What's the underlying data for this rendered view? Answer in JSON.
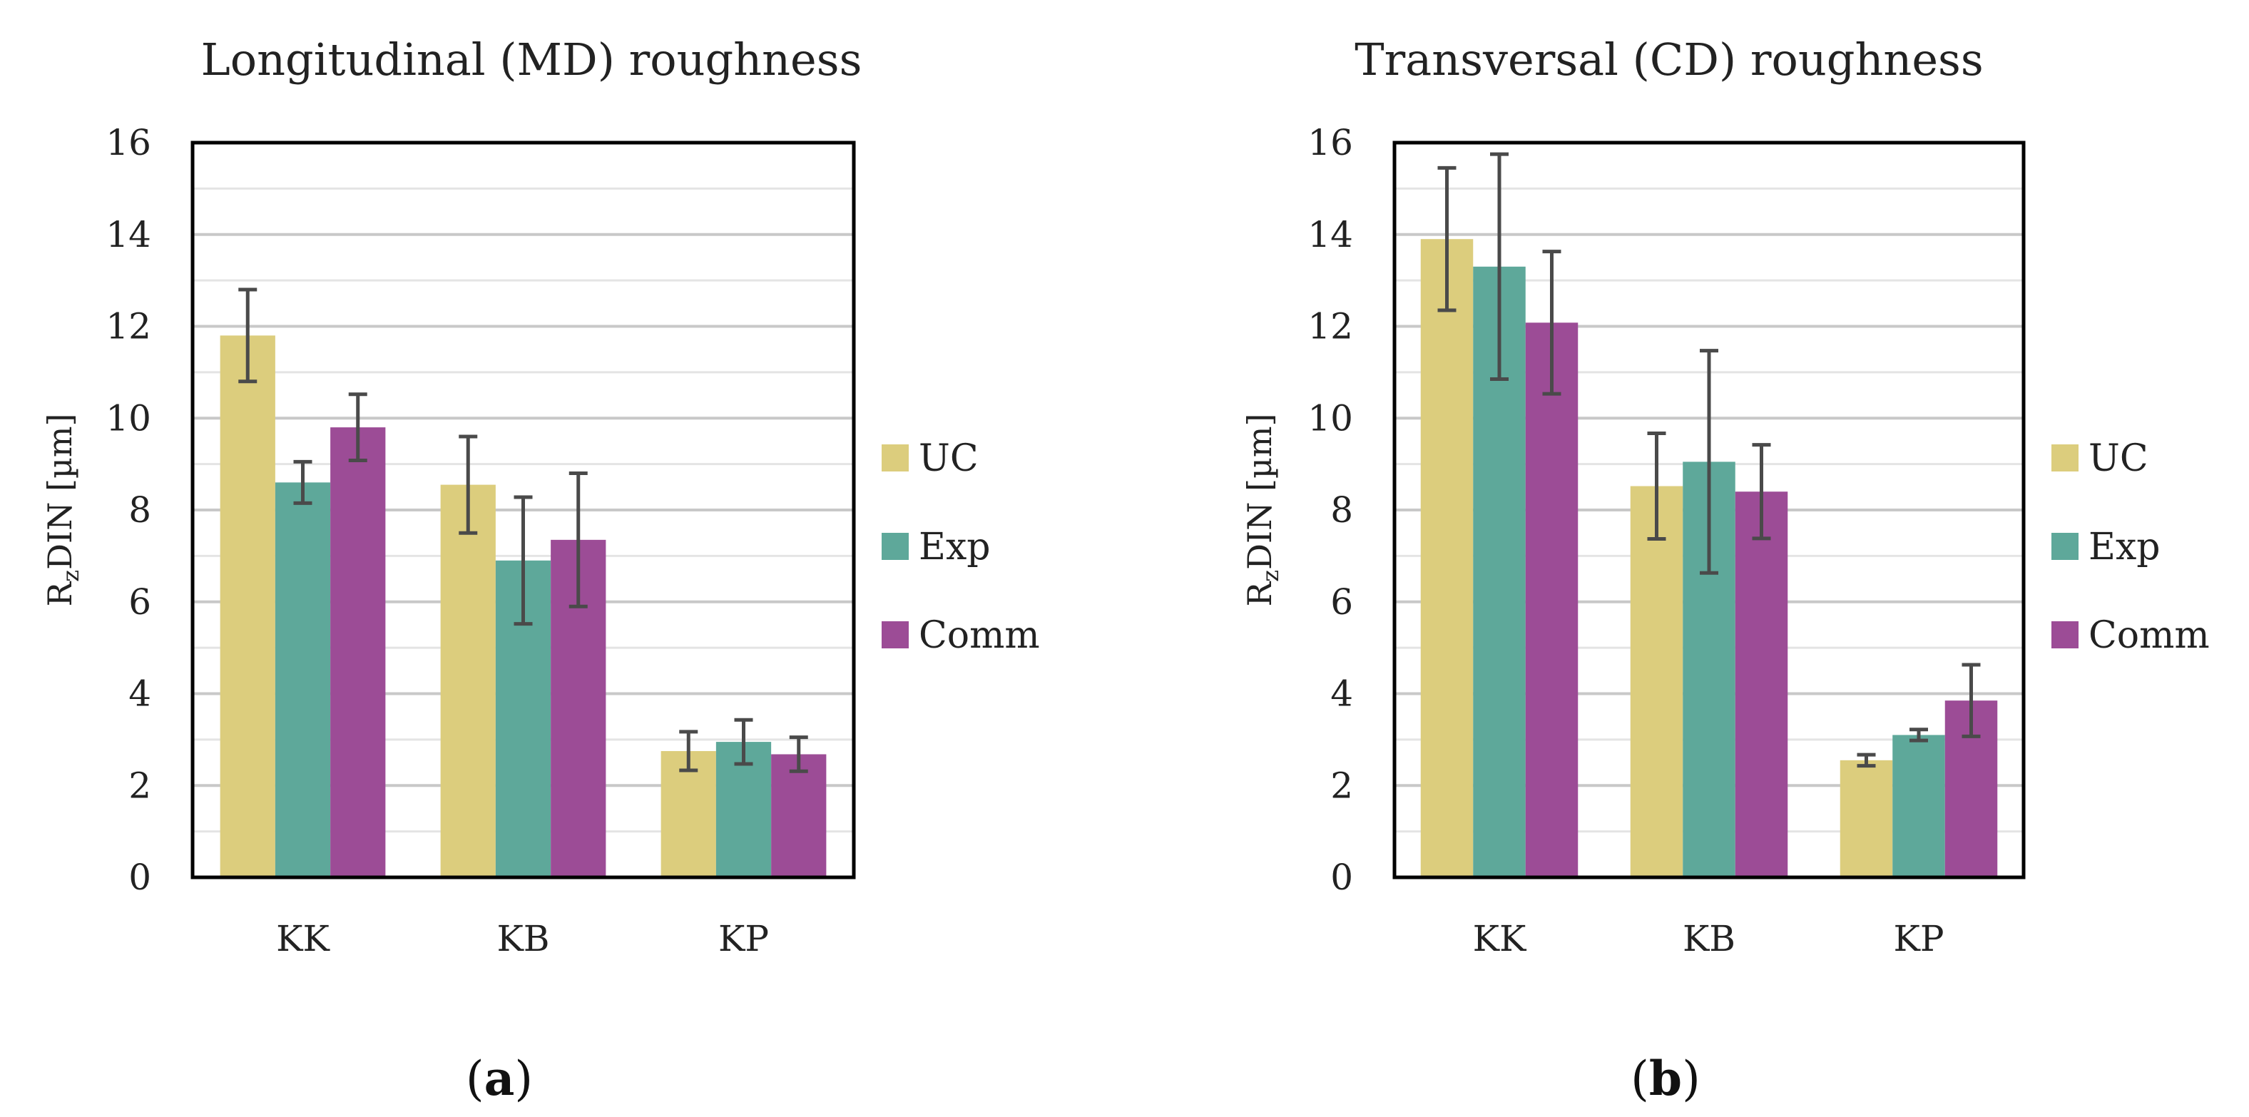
{
  "chart_data": [
    {
      "type": "bar",
      "panel_label": {
        "open": "(",
        "letter": "a",
        "close": ")"
      },
      "title": "Longitudinal (MD) roughness",
      "ylabel": {
        "prefix": "R",
        "subscript": "z",
        "suffix": "DIN [µm]"
      },
      "xlabel": "",
      "ylim": [
        0,
        16
      ],
      "yticks": [
        0,
        2,
        4,
        6,
        8,
        10,
        12,
        14,
        16
      ],
      "grid": true,
      "legend_position": "right",
      "categories": [
        "KK",
        "KB",
        "KP"
      ],
      "series": [
        {
          "name": "UC",
          "color": "#dccd7d",
          "values": [
            11.8,
            8.55,
            2.75
          ],
          "errors": [
            1.0,
            1.05,
            0.42
          ]
        },
        {
          "name": "Exp",
          "color": "#5ea89a",
          "values": [
            8.6,
            6.9,
            2.95
          ],
          "errors": [
            0.45,
            1.38,
            0.48
          ]
        },
        {
          "name": "Comm",
          "color": "#9c4c96",
          "values": [
            9.8,
            7.35,
            2.68
          ],
          "errors": [
            0.72,
            1.45,
            0.37
          ]
        }
      ]
    },
    {
      "type": "bar",
      "panel_label": {
        "open": "(",
        "letter": "b",
        "close": ")"
      },
      "title": "Transversal (CD) roughness",
      "ylabel": {
        "prefix": "R",
        "subscript": "z",
        "suffix": "DIN [µm]"
      },
      "xlabel": "",
      "ylim": [
        0,
        16
      ],
      "yticks": [
        0,
        2,
        4,
        6,
        8,
        10,
        12,
        14,
        16
      ],
      "grid": true,
      "legend_position": "right",
      "categories": [
        "KK",
        "KB",
        "KP"
      ],
      "series": [
        {
          "name": "UC",
          "color": "#dccd7d",
          "values": [
            13.9,
            8.52,
            2.55
          ],
          "errors": [
            1.55,
            1.15,
            0.12
          ]
        },
        {
          "name": "Exp",
          "color": "#5ea89a",
          "values": [
            13.3,
            9.05,
            3.1
          ],
          "errors": [
            2.45,
            2.42,
            0.12
          ]
        },
        {
          "name": "Comm",
          "color": "#9c4c96",
          "values": [
            12.08,
            8.4,
            3.85
          ],
          "errors": [
            1.55,
            1.02,
            0.78
          ]
        }
      ]
    }
  ]
}
